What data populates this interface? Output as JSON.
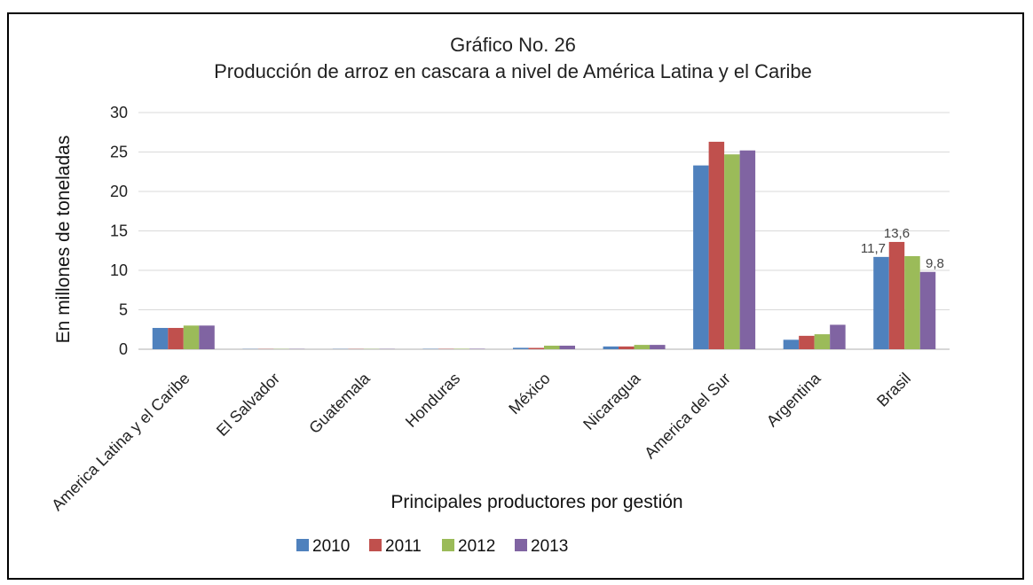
{
  "chart_data": {
    "type": "bar",
    "title": "Gráfico No. 26",
    "subtitle": "Producción de arroz en cascara a nivel de América Latina y el Caribe",
    "xlabel": "Principales productores por gestión",
    "ylabel": "En millones de toneladas",
    "ylim": [
      0,
      30
    ],
    "yticks": [
      "0",
      "5",
      "10",
      "15",
      "20",
      "25",
      "30"
    ],
    "grid": true,
    "legend_position": "bottom",
    "categories": [
      "America Latina y el Caribe",
      "El Salvador",
      "Guatemala",
      "Honduras",
      "México",
      "Nicaragua",
      "America del Sur",
      "Argentina",
      "Brasil"
    ],
    "series": [
      {
        "name": "2010",
        "color": "#4f81bd",
        "values": [
          2.7,
          0.03,
          0.03,
          0.04,
          0.18,
          0.35,
          23.3,
          1.2,
          11.7
        ]
      },
      {
        "name": "2011",
        "color": "#c0504d",
        "values": [
          2.7,
          0.03,
          0.03,
          0.04,
          0.17,
          0.35,
          26.3,
          1.7,
          13.6
        ]
      },
      {
        "name": "2012",
        "color": "#9bbb59",
        "values": [
          3.0,
          0.03,
          0.03,
          0.05,
          0.45,
          0.55,
          24.7,
          1.9,
          11.8
        ]
      },
      {
        "name": "2013",
        "color": "#8064a2",
        "values": [
          3.0,
          0.03,
          0.03,
          0.05,
          0.45,
          0.55,
          25.2,
          3.1,
          9.8
        ]
      }
    ],
    "data_labels": [
      {
        "category_index": 8,
        "series_index": 0,
        "text": "11,7"
      },
      {
        "category_index": 8,
        "series_index": 1,
        "text": "13,6"
      },
      {
        "category_index": 8,
        "series_index": 3,
        "text": "9,8"
      }
    ]
  }
}
